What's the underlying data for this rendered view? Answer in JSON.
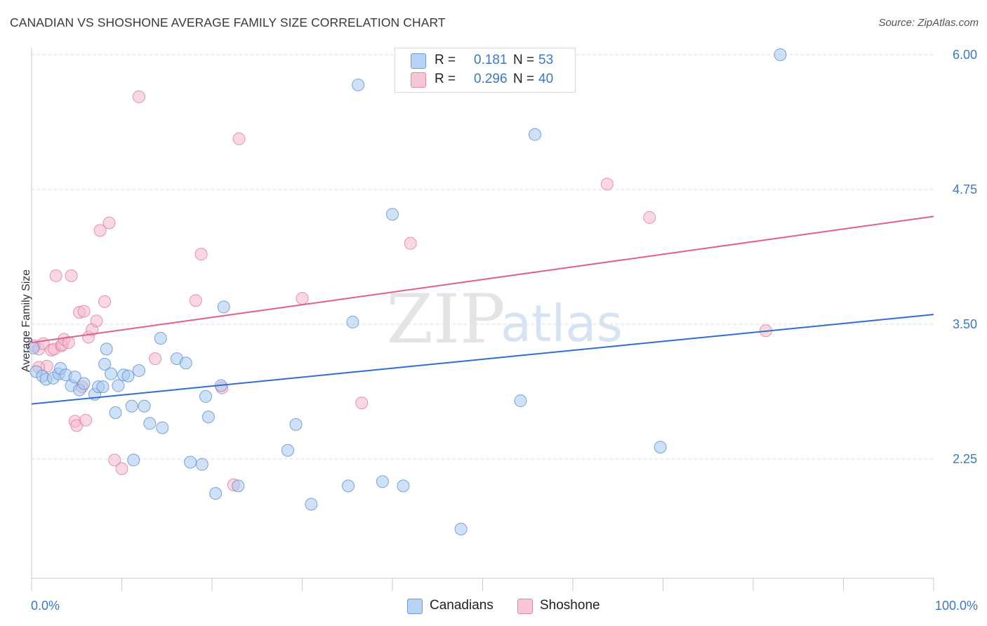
{
  "title": "CANADIAN VS SHOSHONE AVERAGE FAMILY SIZE CORRELATION CHART",
  "source": "Source: ZipAtlas.com",
  "watermark": {
    "zip": "ZIP",
    "atlas": "atlas"
  },
  "colors": {
    "canadians_fill": "#a8c8f0",
    "canadians_stroke": "#5b8fd6",
    "canadians_line": "#2f6fcf",
    "shoshone_fill": "#f5b8cb",
    "shoshone_stroke": "#e07a9c",
    "shoshone_line": "#e0608c",
    "tick_label": "#3a78c9",
    "grid": "#d9d9d9"
  },
  "legend_top": [
    {
      "swatch_fill": "#b9d3f4",
      "swatch_stroke": "#6a9ad8",
      "r_label": "R = ",
      "r_value": "0.181",
      "n_label": "N = ",
      "n_value": "53"
    },
    {
      "swatch_fill": "#f8c6d5",
      "swatch_stroke": "#e48aa8",
      "r_label": "R = ",
      "r_value": "0.296",
      "n_label": "N = ",
      "n_value": "40"
    }
  ],
  "legend_bottom": [
    {
      "label": "Canadians",
      "swatch_fill": "#b9d3f4",
      "swatch_stroke": "#6a9ad8"
    },
    {
      "label": "Shoshone",
      "swatch_fill": "#f8c6d5",
      "swatch_stroke": "#e48aa8"
    }
  ],
  "chart_data": {
    "type": "scatter",
    "title": "CANADIAN VS SHOSHONE AVERAGE FAMILY SIZE CORRELATION CHART",
    "xlabel": "",
    "ylabel": "Average Family Size",
    "xlim": [
      0,
      100
    ],
    "ylim": [
      1.0,
      6.2
    ],
    "x_tick_labels": [
      "0.0%",
      "100.0%"
    ],
    "y_ticks": [
      2.25,
      3.5,
      4.75,
      6.0
    ],
    "y_tick_labels": [
      "2.25",
      "3.50",
      "4.75",
      "6.00"
    ],
    "grid": true,
    "legend_position": "top-center",
    "series": [
      {
        "name": "Canadians",
        "trend": {
          "x": [
            0,
            100
          ],
          "y": [
            2.76,
            3.59
          ]
        },
        "points": [
          [
            0.5,
            3.06
          ],
          [
            1.2,
            3.02
          ],
          [
            1.6,
            2.99
          ],
          [
            2.4,
            3.0
          ],
          [
            3.0,
            3.04
          ],
          [
            3.2,
            3.09
          ],
          [
            3.8,
            3.03
          ],
          [
            4.4,
            2.93
          ],
          [
            4.8,
            3.01
          ],
          [
            5.3,
            2.89
          ],
          [
            5.8,
            2.95
          ],
          [
            7.0,
            2.85
          ],
          [
            7.4,
            2.92
          ],
          [
            7.9,
            2.92
          ],
          [
            8.1,
            3.13
          ],
          [
            8.3,
            3.27
          ],
          [
            8.8,
            3.04
          ],
          [
            9.3,
            2.68
          ],
          [
            9.6,
            2.93
          ],
          [
            10.2,
            3.03
          ],
          [
            10.7,
            3.02
          ],
          [
            11.1,
            2.74
          ],
          [
            11.3,
            2.24
          ],
          [
            11.9,
            3.07
          ],
          [
            12.5,
            2.74
          ],
          [
            13.1,
            2.58
          ],
          [
            14.3,
            3.37
          ],
          [
            14.5,
            2.54
          ],
          [
            16.1,
            3.18
          ],
          [
            17.1,
            3.14
          ],
          [
            17.6,
            2.22
          ],
          [
            18.9,
            2.2
          ],
          [
            19.3,
            2.83
          ],
          [
            19.6,
            2.64
          ],
          [
            20.4,
            1.93
          ],
          [
            21.0,
            2.93
          ],
          [
            21.3,
            3.66
          ],
          [
            22.9,
            2.0
          ],
          [
            28.4,
            2.33
          ],
          [
            29.3,
            2.57
          ],
          [
            31.0,
            1.83
          ],
          [
            35.1,
            2.0
          ],
          [
            35.6,
            3.52
          ],
          [
            36.2,
            5.72
          ],
          [
            38.9,
            2.04
          ],
          [
            40.0,
            4.52
          ],
          [
            41.2,
            2.0
          ],
          [
            47.6,
            1.6
          ],
          [
            54.2,
            2.79
          ],
          [
            55.8,
            5.26
          ],
          [
            69.7,
            2.36
          ],
          [
            83.0,
            6.0
          ],
          [
            0.2,
            3.28
          ]
        ]
      },
      {
        "name": "Shoshone",
        "trend": {
          "x": [
            0,
            100
          ],
          "y": [
            3.33,
            4.5
          ]
        },
        "points": [
          [
            0.3,
            3.3
          ],
          [
            0.8,
            3.27
          ],
          [
            1.3,
            3.32
          ],
          [
            1.7,
            3.11
          ],
          [
            2.2,
            3.26
          ],
          [
            2.5,
            3.27
          ],
          [
            2.7,
            3.95
          ],
          [
            3.3,
            3.3
          ],
          [
            3.4,
            3.31
          ],
          [
            3.6,
            3.36
          ],
          [
            4.1,
            3.33
          ],
          [
            4.4,
            3.95
          ],
          [
            4.8,
            2.6
          ],
          [
            5.0,
            2.56
          ],
          [
            5.3,
            3.61
          ],
          [
            5.6,
            2.92
          ],
          [
            5.8,
            3.62
          ],
          [
            6.0,
            2.61
          ],
          [
            6.3,
            3.38
          ],
          [
            6.7,
            3.45
          ],
          [
            7.2,
            3.53
          ],
          [
            7.6,
            4.37
          ],
          [
            8.1,
            3.71
          ],
          [
            8.6,
            4.44
          ],
          [
            9.2,
            2.24
          ],
          [
            10.0,
            2.16
          ],
          [
            11.9,
            5.61
          ],
          [
            13.7,
            3.18
          ],
          [
            18.2,
            3.72
          ],
          [
            18.8,
            4.15
          ],
          [
            21.1,
            2.91
          ],
          [
            22.4,
            2.01
          ],
          [
            23.0,
            5.22
          ],
          [
            30.0,
            3.74
          ],
          [
            36.6,
            2.77
          ],
          [
            42.0,
            4.25
          ],
          [
            63.8,
            4.8
          ],
          [
            68.5,
            4.49
          ],
          [
            81.4,
            3.44
          ],
          [
            0.8,
            3.1
          ]
        ]
      }
    ]
  }
}
